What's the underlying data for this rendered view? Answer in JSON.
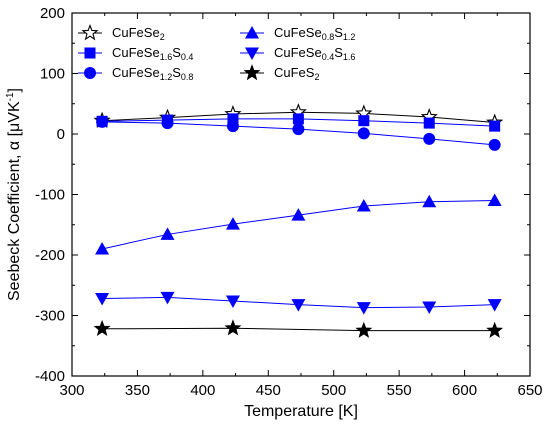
{
  "chart_data": {
    "type": "line",
    "xlabel": "Temperature [K]",
    "ylabel_text": "Seebeck Coefficient, α [μVK",
    "ylabel_sup": "-1",
    "ylabel_close": "]",
    "xlim": [
      300,
      650
    ],
    "ylim": [
      -400,
      200
    ],
    "x_ticks": [
      300,
      350,
      400,
      450,
      500,
      550,
      600,
      650
    ],
    "y_ticks": [
      -400,
      -300,
      -200,
      -100,
      0,
      100,
      200
    ],
    "x_tick_labels": [
      "300",
      "350",
      "400",
      "450",
      "500",
      "550",
      "600",
      "650"
    ],
    "y_tick_labels": [
      "-400",
      "-300",
      "-200",
      "-100",
      "0",
      "100",
      "200"
    ],
    "grid": false,
    "legend_placement": "top-left",
    "series": [
      {
        "name": "CuFeSe2",
        "name_parts": [
          {
            "t": "CuFeSe"
          },
          {
            "t": "2",
            "sub": true
          }
        ],
        "marker": "star-open",
        "color": "#000000",
        "x": [
          323,
          373,
          423,
          473,
          523,
          573,
          623
        ],
        "y": [
          22,
          27,
          33,
          36,
          34,
          28,
          19
        ]
      },
      {
        "name": "CuFeSe1.6S0.4",
        "name_parts": [
          {
            "t": "CuFeSe"
          },
          {
            "t": "1.6",
            "sub": true
          },
          {
            "t": "S"
          },
          {
            "t": "0.4",
            "sub": true
          }
        ],
        "marker": "square",
        "color": "#0000ff",
        "x": [
          323,
          373,
          423,
          473,
          523,
          573,
          623
        ],
        "y": [
          21,
          23,
          25,
          25,
          22,
          18,
          13
        ]
      },
      {
        "name": "CuFeSe1.2S0.8",
        "name_parts": [
          {
            "t": "CuFeSe"
          },
          {
            "t": "1.2",
            "sub": true
          },
          {
            "t": "S"
          },
          {
            "t": "0.8",
            "sub": true
          }
        ],
        "marker": "circle",
        "color": "#0000ff",
        "x": [
          323,
          373,
          423,
          473,
          523,
          573,
          623
        ],
        "y": [
          20,
          18,
          13,
          8,
          1,
          -8,
          -18
        ]
      },
      {
        "name": "CuFeSe0.8S1.2",
        "name_parts": [
          {
            "t": "CuFeSe"
          },
          {
            "t": "0.8",
            "sub": true
          },
          {
            "t": "S"
          },
          {
            "t": "1.2",
            "sub": true
          }
        ],
        "marker": "triangle-up",
        "color": "#0000ff",
        "x": [
          323,
          373,
          423,
          473,
          523,
          573,
          623
        ],
        "y": [
          -190,
          -166,
          -149,
          -134,
          -119,
          -112,
          -110
        ]
      },
      {
        "name": "CuFeSe0.4S1.6",
        "name_parts": [
          {
            "t": "CuFeSe"
          },
          {
            "t": "0.4",
            "sub": true
          },
          {
            "t": "S"
          },
          {
            "t": "1.6",
            "sub": true
          }
        ],
        "marker": "triangle-down",
        "color": "#0000ff",
        "x": [
          323,
          373,
          423,
          473,
          523,
          573,
          623
        ],
        "y": [
          -272,
          -270,
          -276,
          -282,
          -287,
          -286,
          -282
        ]
      },
      {
        "name": "CuFeS2",
        "name_parts": [
          {
            "t": "CuFeS"
          },
          {
            "t": "2",
            "sub": true
          }
        ],
        "marker": "star-filled",
        "color": "#000000",
        "x": [
          323,
          423,
          523,
          623
        ],
        "y": [
          -322,
          -321,
          -325,
          -325
        ]
      }
    ]
  }
}
